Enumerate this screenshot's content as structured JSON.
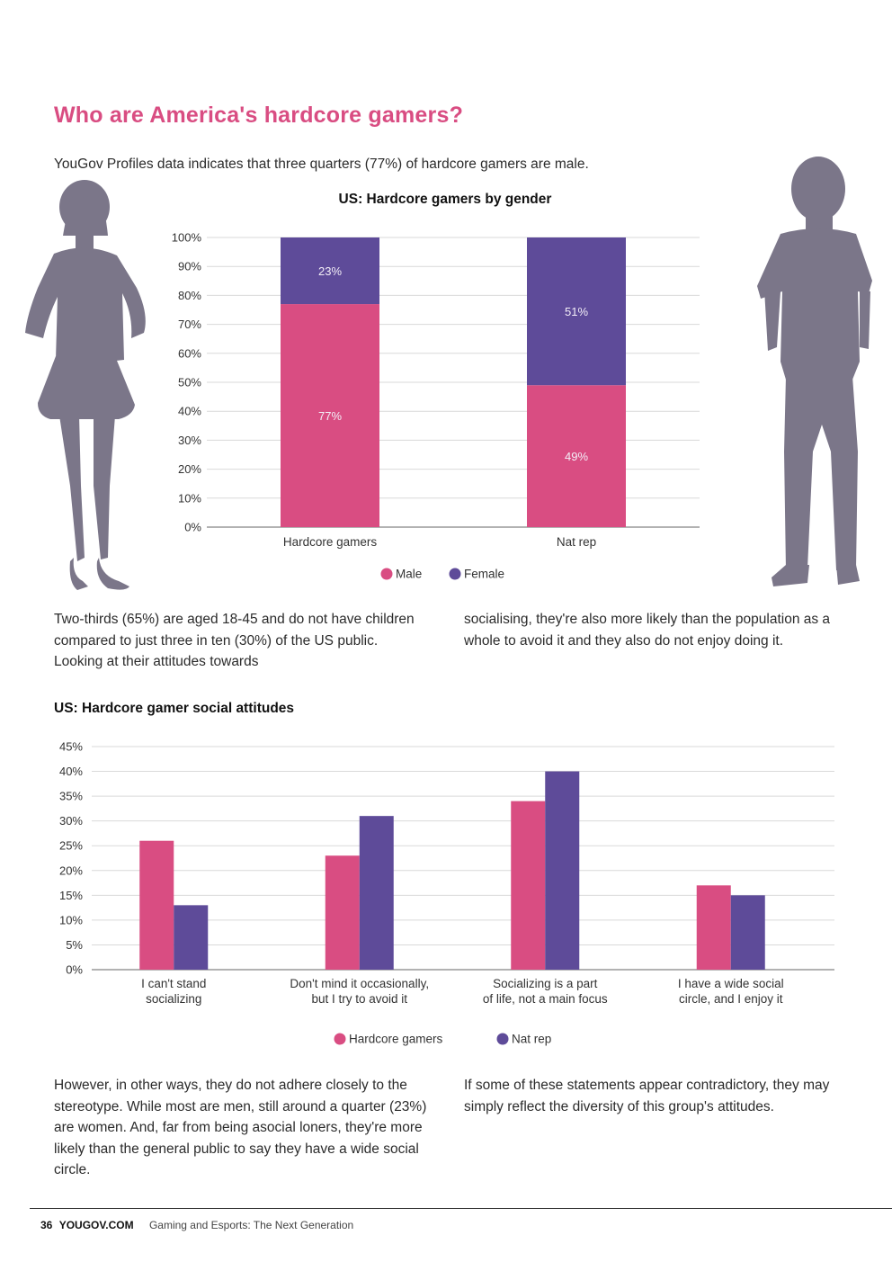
{
  "page": {
    "title": "Who are America's hardcore gamers?",
    "intro": "YouGov Profiles data indicates that three quarters (77%) of hardcore gamers are male.",
    "paragraph1_left": "Two-thirds (65%) are aged 18-45 and do not have children compared to just three in ten (30%) of the US public. Looking at their attitudes towards",
    "paragraph1_right": "socialising, they're also more likely than the population as a whole to avoid it and they also do not enjoy doing it.",
    "paragraph2_left": "However, in other ways, they do not adhere closely to the stereotype. While most are men, still around a quarter (23%) are women. And, far from being asocial loners, they're more likely than the general public to say they have a wide social circle.",
    "paragraph2_right": "If some of these statements appear contradictory, they may simply reflect the diversity of this group's attitudes."
  },
  "footer": {
    "page_number": "36",
    "site": "YOUGOV.COM",
    "publication": "Gaming and Esports: The Next Generation"
  },
  "colors": {
    "pink": "#d94d82",
    "purple": "#5e4b99",
    "silhouette": "#7b7689",
    "grid": "#d9d9d9"
  },
  "icons": {
    "left_figure": "woman-silhouette-icon",
    "right_figure": "man-silhouette-icon"
  },
  "chart_data": [
    {
      "type": "bar",
      "stacked": true,
      "title": "US: Hardcore gamers by gender",
      "categories": [
        "Hardcore gamers",
        "Nat rep"
      ],
      "series": [
        {
          "name": "Male",
          "values": [
            77,
            49
          ],
          "labels": [
            "77%",
            "49%"
          ]
        },
        {
          "name": "Female",
          "values": [
            23,
            51
          ],
          "labels": [
            "23%",
            "51%"
          ]
        }
      ],
      "ylim": [
        0,
        100
      ],
      "yticks": [
        "0%",
        "10%",
        "20%",
        "30%",
        "40%",
        "50%",
        "60%",
        "70%",
        "80%",
        "90%",
        "100%"
      ],
      "grid": true,
      "legend": "bottom-center"
    },
    {
      "type": "bar",
      "stacked": false,
      "title": "US: Hardcore gamer social attitudes",
      "categories": [
        [
          "I can't stand",
          "socializing"
        ],
        [
          "Don't mind it occasionally,",
          "but I try to avoid it"
        ],
        [
          "Socializing is a part",
          "of life, not a main focus"
        ],
        [
          "I have a wide social",
          "circle, and I enjoy it"
        ]
      ],
      "series": [
        {
          "name": "Hardcore gamers",
          "values": [
            26,
            23,
            34,
            17
          ]
        },
        {
          "name": "Nat rep",
          "values": [
            13,
            31,
            40,
            15
          ]
        }
      ],
      "ylim": [
        0,
        45
      ],
      "yticks": [
        "0%",
        "5%",
        "10%",
        "15%",
        "20%",
        "25%",
        "30%",
        "35%",
        "40%",
        "45%"
      ],
      "grid": true,
      "legend": "bottom-center"
    }
  ]
}
